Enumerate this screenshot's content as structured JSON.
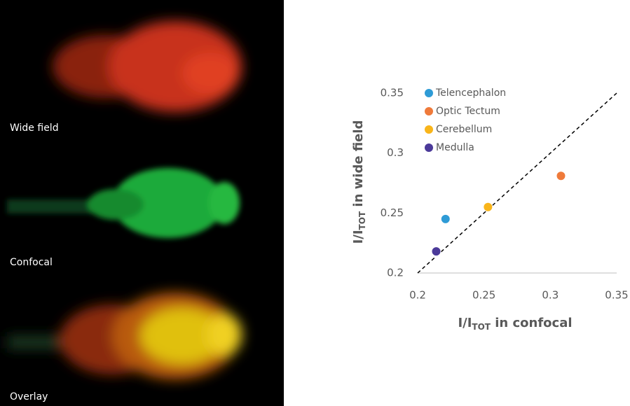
{
  "panels": [
    {
      "label": "Wide field"
    },
    {
      "label": "Confocal"
    },
    {
      "label": "Overlay"
    }
  ],
  "chart_data": {
    "type": "scatter",
    "x_label": [
      "I/I",
      "TOT",
      " in confocal"
    ],
    "y_label": [
      "I/I",
      "TOT",
      " in wide field"
    ],
    "xlim": [
      0.2,
      0.35
    ],
    "ylim": [
      0.2,
      0.35
    ],
    "xticks": [
      0.2,
      0.25,
      0.3,
      0.35
    ],
    "yticks": [
      0.2,
      0.25,
      0.3,
      0.35
    ],
    "series": [
      {
        "name": "Telencephalon",
        "color": "#2e9bd6",
        "x": [
          0.221
        ],
        "values": [
          0.245
        ]
      },
      {
        "name": "Optic Tectum",
        "color": "#ef7a3a",
        "x": [
          0.308
        ],
        "values": [
          0.281
        ]
      },
      {
        "name": "Cerebellum",
        "color": "#f9b51a",
        "x": [
          0.253
        ],
        "values": [
          0.255
        ]
      },
      {
        "name": "Medulla",
        "color": "#4b3a99",
        "x": [
          0.214
        ],
        "values": [
          0.218
        ]
      }
    ]
  }
}
